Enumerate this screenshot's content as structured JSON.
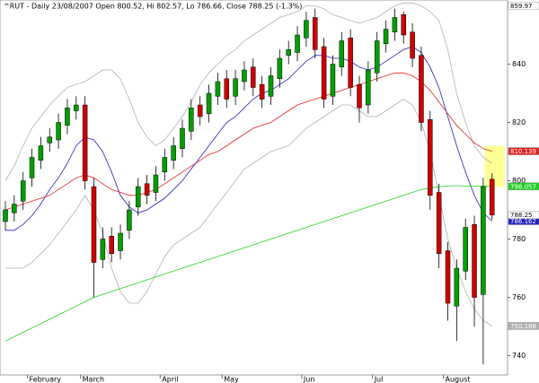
{
  "chart_data": {
    "type": "candlestick",
    "title": "^RUT - Daily 23/08/2007 Open 800.52, Hi 802.57, Lo 786.66, Close 788.25 (-1.3%)",
    "categories": [
      null,
      null,
      null,
      "February",
      null,
      null,
      null,
      null,
      null,
      "March",
      null,
      null,
      null,
      null,
      null,
      null,
      null,
      null,
      "April",
      null,
      null,
      null,
      null,
      null,
      null,
      "May",
      null,
      null,
      null,
      null,
      null,
      null,
      null,
      null,
      "Jun",
      null,
      null,
      null,
      null,
      null,
      null,
      null,
      "Jul",
      null,
      null,
      null,
      null,
      null,
      null,
      null,
      "August",
      null,
      null,
      null,
      null,
      null
    ],
    "open": [
      786,
      789,
      793,
      801,
      807,
      813,
      814,
      819,
      824,
      826,
      798,
      773,
      781,
      776,
      783,
      791,
      799,
      796,
      803,
      807,
      811,
      817,
      826,
      823,
      829,
      835,
      829,
      834,
      839,
      833,
      829,
      835,
      843,
      844,
      849,
      856,
      846,
      829,
      839,
      849,
      833,
      826,
      837,
      847,
      851,
      857,
      851,
      843,
      821,
      796,
      776,
      757,
      769,
      785,
      761,
      800.52
    ],
    "high": [
      793,
      795,
      803,
      811,
      815,
      818,
      823,
      828,
      829,
      829,
      801,
      784,
      784,
      785,
      793,
      801,
      802,
      805,
      811,
      815,
      821,
      828,
      829,
      833,
      837,
      838,
      838,
      841,
      842,
      836,
      839,
      845,
      848,
      853,
      858,
      859,
      849,
      843,
      851,
      852,
      836,
      841,
      851,
      855,
      859,
      858,
      854,
      846,
      824,
      799,
      779,
      773,
      787,
      788,
      801,
      802.57
    ],
    "low": [
      783,
      786,
      790,
      798,
      804,
      810,
      811,
      816,
      821,
      797,
      760,
      770,
      772,
      773,
      780,
      788,
      792,
      793,
      800,
      804,
      808,
      814,
      819,
      820,
      826,
      825,
      826,
      831,
      829,
      825,
      826,
      832,
      840,
      841,
      846,
      842,
      825,
      826,
      836,
      829,
      820,
      823,
      834,
      844,
      848,
      847,
      839,
      817,
      790,
      770,
      752,
      745,
      766,
      750,
      737,
      786.66
    ],
    "close": [
      790,
      792,
      800,
      808,
      812,
      815,
      820,
      825,
      826,
      800,
      772,
      780,
      775,
      782,
      790,
      798,
      795,
      802,
      808,
      812,
      818,
      825,
      822,
      830,
      834,
      828,
      835,
      838,
      832,
      828,
      836,
      842,
      845,
      850,
      855,
      845,
      828,
      840,
      848,
      832,
      825,
      838,
      848,
      852,
      856,
      850,
      842,
      820,
      795,
      775,
      758,
      770,
      784,
      760,
      798,
      788.25
    ],
    "up_color": "#00a000",
    "down_color": "#d00000",
    "series": [
      {
        "name": "Upper band",
        "color": "#b0b0b0",
        "end_label": false,
        "values": [
          800,
          805,
          812,
          818,
          822,
          826,
          829,
          832,
          833,
          834,
          836,
          838,
          838,
          835,
          828,
          820,
          815,
          812,
          814,
          818,
          822,
          827,
          833,
          837,
          840,
          843,
          845,
          848,
          850,
          852,
          854,
          856,
          857,
          858,
          860,
          860,
          859,
          857,
          856,
          855,
          854,
          855,
          856,
          858,
          860,
          861,
          861,
          860,
          858,
          855,
          845,
          830,
          820,
          812,
          808,
          806
        ]
      },
      {
        "name": "Lower band",
        "color": "#b0b0b0",
        "end_label": true,
        "values": [
          770,
          770,
          770,
          772,
          775,
          778,
          782,
          786,
          790,
          795,
          790,
          782,
          770,
          762,
          758,
          758,
          762,
          768,
          774,
          778,
          780,
          782,
          784,
          788,
          792,
          796,
          800,
          804,
          806,
          808,
          810,
          811,
          812,
          815,
          818,
          820,
          822,
          824,
          826,
          826,
          824,
          822,
          822,
          824,
          826,
          828,
          826,
          820,
          810,
          795,
          780,
          770,
          762,
          756,
          752,
          750.188
        ]
      },
      {
        "name": "MA 20",
        "color": "#2020c0",
        "end_label": true,
        "values": [
          783,
          783,
          785,
          788,
          792,
          797,
          801,
          806,
          812,
          815,
          814,
          810,
          803,
          795,
          791,
          789,
          790,
          792,
          794,
          797,
          800,
          804,
          808,
          812,
          816,
          820,
          822,
          825,
          828,
          830,
          831,
          833,
          835,
          838,
          841,
          843,
          843,
          842,
          842,
          841,
          839,
          838,
          839,
          841,
          843,
          845,
          846,
          844,
          839,
          832,
          822,
          812,
          803,
          795,
          789,
          786.162
        ]
      },
      {
        "name": "MA 50",
        "color": "#e02020",
        "end_label": true,
        "values": [
          790,
          791,
          792,
          793,
          794,
          795,
          797,
          799,
          801,
          802,
          801,
          799,
          797,
          796,
          795,
          795,
          796,
          797,
          799,
          801,
          803,
          805,
          807,
          809,
          810,
          812,
          814,
          816,
          818,
          819,
          820,
          822,
          824,
          826,
          827,
          828,
          829,
          830,
          831,
          832,
          833,
          834,
          835,
          836,
          837,
          837,
          836,
          834,
          831,
          827,
          823,
          819,
          816,
          813,
          811,
          810.139
        ]
      },
      {
        "name": "MA 200",
        "color": "#20d020",
        "end_label": true,
        "values": [
          745,
          746.5,
          748,
          749.5,
          751,
          752.5,
          754,
          755.5,
          757,
          758.5,
          760,
          761,
          762,
          763,
          764,
          765,
          766,
          767,
          768,
          769,
          770,
          771,
          772,
          773,
          774,
          775,
          776,
          777,
          778,
          779,
          780,
          781,
          782,
          783,
          784,
          785,
          786,
          787,
          788,
          789,
          790,
          791,
          792,
          793,
          794,
          795,
          796,
          797,
          797.5,
          798,
          798.2,
          798.3,
          798.2,
          798.1,
          798.1,
          798.057
        ]
      }
    ],
    "high_marker": 859.97,
    "ylim": [
      733.4,
      862
    ],
    "yticks": [
      740,
      760,
      780,
      800,
      820,
      840
    ]
  }
}
